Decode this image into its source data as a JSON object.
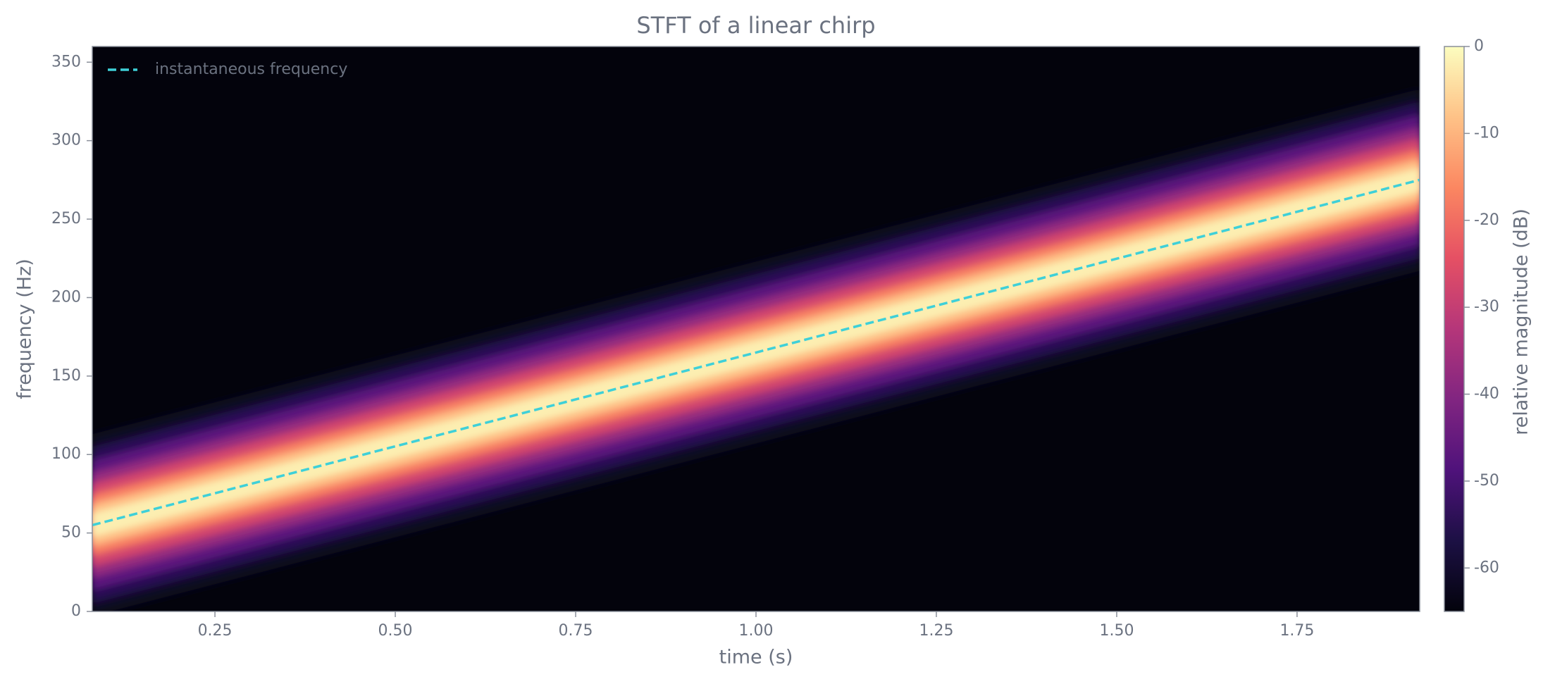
{
  "chart_data": {
    "type": "spectrogram",
    "title": "STFT of a linear chirp",
    "x_label": "time (s)",
    "y_label": "frequency (Hz)",
    "xlim": [
      0.08,
      1.92
    ],
    "ylim": [
      0,
      360
    ],
    "xticks": [
      0.25,
      {
        "value": 0.5,
        "label": "0.50"
      },
      0.75,
      {
        "value": 1,
        "label": "1.00"
      },
      1.25,
      {
        "value": 1.5,
        "label": "1.50"
      },
      1.75
    ],
    "yticks": [
      0,
      50,
      100,
      150,
      200,
      250,
      300,
      350
    ],
    "legend": "upper left",
    "series": [
      {
        "name": "instantaneous frequency",
        "color": "#3ed0d8",
        "dashed": true,
        "x": [
          0.08,
          1.92
        ],
        "values": [
          55,
          275
        ]
      }
    ],
    "spectrogram": {
      "band_halfwidth_hz": [
        58,
        50,
        42,
        34,
        27,
        20,
        14,
        8
      ],
      "band_db": [
        -62,
        -55,
        -47,
        -38,
        -28,
        -18,
        -9,
        -2
      ]
    },
    "colorbar": {
      "label": "relative magnitude (dB)",
      "lim": [
        -65,
        0
      ],
      "ticks": [
        0,
        -10,
        -20,
        -30,
        -40,
        -50,
        -60
      ],
      "colors": [
        "#03030c",
        "#1c1044",
        "#4f127b",
        "#812581",
        "#b5367a",
        "#e55064",
        "#fb8761",
        "#fec287",
        "#fcfdbf"
      ]
    }
  }
}
